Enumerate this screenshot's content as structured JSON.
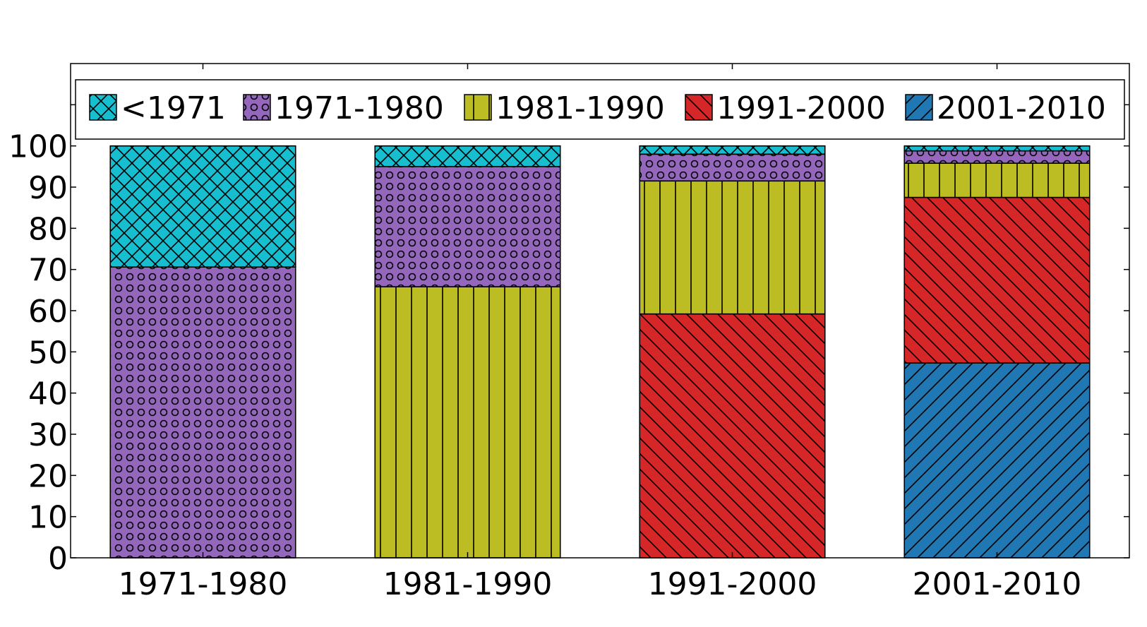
{
  "chart_data": {
    "type": "bar",
    "stacked": true,
    "categories": [
      "1971-1980",
      "1981-1990",
      "1991-2000",
      "2001-2010"
    ],
    "series": [
      {
        "name": "2001-2010",
        "color": "#1f77b4",
        "hatch": "diag-up",
        "values": [
          0,
          0,
          0,
          47.3
        ]
      },
      {
        "name": "1991-2000",
        "color": "#d62728",
        "hatch": "diag-down",
        "values": [
          0,
          0,
          59.2,
          40.2
        ]
      },
      {
        "name": "1981-1990",
        "color": "#bcbd22",
        "hatch": "vertical",
        "values": [
          0,
          65.8,
          32.3,
          8.3
        ]
      },
      {
        "name": "1971-1980",
        "color": "#9467bd",
        "hatch": "circles",
        "values": [
          70.6,
          29.2,
          6.5,
          3.0
        ]
      },
      {
        "name": "<1971",
        "color": "#17becf",
        "hatch": "crosshatch",
        "values": [
          29.4,
          5.0,
          2.0,
          1.2
        ]
      }
    ],
    "legend_order": [
      "<1971",
      "1971-1980",
      "1981-1990",
      "1991-2000",
      "2001-2010"
    ],
    "yticks": [
      "0",
      "10",
      "20",
      "30",
      "40",
      "50",
      "60",
      "70",
      "80",
      "90",
      "100"
    ],
    "ylim": [
      0,
      120
    ],
    "legend_position": "top",
    "grid": false
  }
}
